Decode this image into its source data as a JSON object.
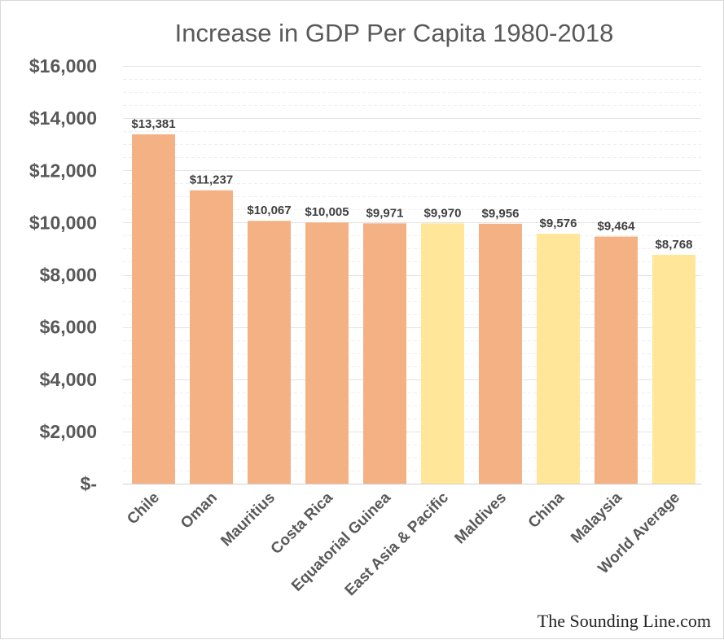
{
  "chart_data": {
    "type": "bar",
    "title": "Increase in GDP Per Capita 1980-2018",
    "xlabel": "",
    "ylabel": "",
    "ylim": [
      0,
      16000
    ],
    "ytick_values": [
      0,
      2000,
      4000,
      6000,
      8000,
      10000,
      12000,
      14000,
      16000
    ],
    "ytick_labels": [
      "$-",
      "$2,000",
      "$4,000",
      "$6,000",
      "$8,000",
      "$10,000",
      "$12,000",
      "$14,000",
      "$16,000"
    ],
    "categories": [
      "Chile",
      "Oman",
      "Mauritius",
      "Costa Rica",
      "Equatorial Guinea",
      "East Asia & Pacific",
      "Maldives",
      "China",
      "Malaysia",
      "World Average"
    ],
    "values": [
      13381,
      11237,
      10067,
      10005,
      9971,
      9970,
      9956,
      9576,
      9464,
      8768
    ],
    "data_labels": [
      "$13,381",
      "$11,237",
      "$10,067",
      "$10,005",
      "$9,971",
      "$9,970",
      "$9,956",
      "$9,576",
      "$9,464",
      "$8,768"
    ],
    "bar_colors": [
      "#f4b183",
      "#f4b183",
      "#f4b183",
      "#f4b183",
      "#f4b183",
      "#ffe699",
      "#f4b183",
      "#ffe699",
      "#f4b183",
      "#ffe699"
    ],
    "grid": true,
    "legend": "none"
  },
  "watermark": "The Sounding Line.com"
}
